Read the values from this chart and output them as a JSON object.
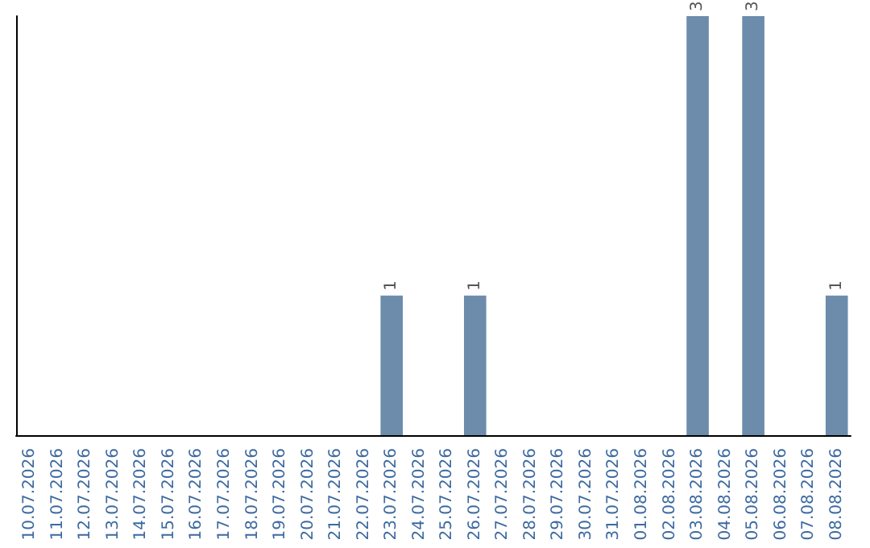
{
  "chart_data": {
    "type": "bar",
    "categories": [
      "10.07.2026",
      "11.07.2026",
      "12.07.2026",
      "13.07.2026",
      "14.07.2026",
      "15.07.2026",
      "16.07.2026",
      "17.07.2026",
      "18.07.2026",
      "19.07.2026",
      "20.07.2026",
      "21.07.2026",
      "22.07.2026",
      "23.07.2026",
      "24.07.2026",
      "25.07.2026",
      "26.07.2026",
      "27.07.2026",
      "28.07.2026",
      "29.07.2026",
      "30.07.2026",
      "31.07.2026",
      "01.08.2026",
      "02.08.2026",
      "03.08.2026",
      "04.08.2026",
      "05.08.2026",
      "06.08.2026",
      "07.08.2026",
      "08.08.2026"
    ],
    "values": [
      null,
      null,
      null,
      null,
      null,
      null,
      null,
      null,
      null,
      null,
      null,
      null,
      null,
      1,
      null,
      null,
      1,
      null,
      null,
      null,
      null,
      null,
      null,
      null,
      3,
      null,
      3,
      null,
      null,
      1
    ],
    "color": "#6d8cab",
    "data_labels": true,
    "tick_labels": "x"
  }
}
